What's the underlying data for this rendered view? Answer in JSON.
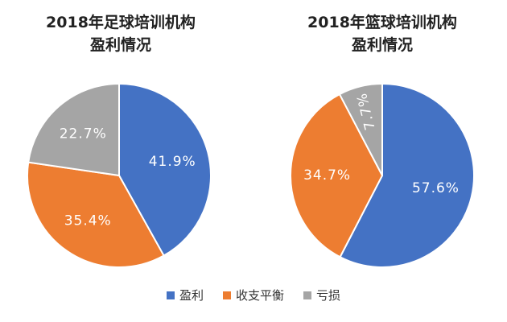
{
  "chart_data": [
    {
      "type": "pie",
      "title_lines": [
        "2018年足球培训机构",
        "盈利情况"
      ],
      "categories": [
        "盈利",
        "收支平衡",
        "亏损"
      ],
      "values": [
        41.9,
        35.4,
        22.7
      ],
      "value_labels": [
        "41.9%",
        "35.4%",
        "22.7%"
      ],
      "colors": [
        "#4472C4",
        "#ED7D31",
        "#A5A5A5"
      ],
      "start_angle_deg": 0,
      "direction": "clockwise"
    },
    {
      "type": "pie",
      "title_lines": [
        "2018年篮球培训机构",
        "盈利情况"
      ],
      "categories": [
        "盈利",
        "收支平衡",
        "亏损"
      ],
      "values": [
        57.6,
        34.7,
        7.7
      ],
      "value_labels": [
        "57.6%",
        "34.7%",
        "7.7%"
      ],
      "colors": [
        "#4472C4",
        "#ED7D31",
        "#A5A5A5"
      ],
      "start_angle_deg": 0,
      "direction": "clockwise"
    }
  ],
  "legend": {
    "placement": "bottom",
    "items": [
      {
        "label": "盈利",
        "color": "#4472C4"
      },
      {
        "label": "收支平衡",
        "color": "#ED7D31"
      },
      {
        "label": "亏损",
        "color": "#A5A5A5"
      }
    ]
  }
}
